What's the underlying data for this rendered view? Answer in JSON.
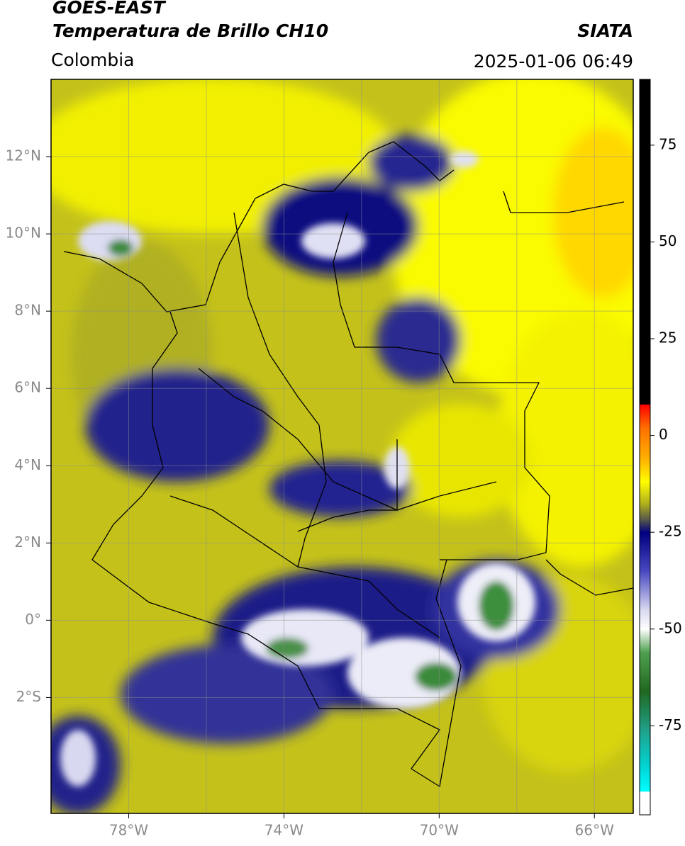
{
  "header": {
    "title": "GOES-EAST",
    "subtitle": "Temperatura de Brillo CH10",
    "region": "Colombia",
    "source": "SIATA",
    "datetime": "2025-01-06 06:49"
  },
  "map": {
    "xlim": [
      -80,
      -65
    ],
    "ylim": [
      -5,
      14
    ],
    "lon_ticks": [
      {
        "value": -78,
        "label": "78°W"
      },
      {
        "value": -74,
        "label": "74°W"
      },
      {
        "value": -70,
        "label": "70°W"
      },
      {
        "value": -66,
        "label": "66°W"
      }
    ],
    "lat_ticks": [
      {
        "value": 12,
        "label": "12°N"
      },
      {
        "value": 10,
        "label": "10°N"
      },
      {
        "value": 8,
        "label": "8°N"
      },
      {
        "value": 6,
        "label": "6°N"
      },
      {
        "value": 4,
        "label": "4°N"
      },
      {
        "value": 2,
        "label": "2°N"
      },
      {
        "value": 0,
        "label": "0°"
      },
      {
        "value": -2,
        "label": "2°S"
      }
    ],
    "lon_grid": [
      -78,
      -76,
      -74,
      -72,
      -70,
      -68,
      -66
    ]
  },
  "colorbar": {
    "lim": [
      -98,
      92
    ],
    "ticks": [
      75,
      50,
      25,
      0,
      -25,
      -50,
      -75
    ],
    "stops": [
      {
        "value": 92,
        "color": "#000000"
      },
      {
        "value": 8,
        "color": "#000000"
      },
      {
        "value": 8,
        "color": "#ff0000"
      },
      {
        "value": 2,
        "color": "#ff7000"
      },
      {
        "value": -6,
        "color": "#ffb000"
      },
      {
        "value": -12,
        "color": "#ffff00"
      },
      {
        "value": -18,
        "color": "#a8a820"
      },
      {
        "value": -22,
        "color": "#505050"
      },
      {
        "value": -25,
        "color": "#000080"
      },
      {
        "value": -35,
        "color": "#4848c0"
      },
      {
        "value": -45,
        "color": "#d8d8f0"
      },
      {
        "value": -50,
        "color": "#ffffff"
      },
      {
        "value": -56,
        "color": "#50a050"
      },
      {
        "value": -66,
        "color": "#206820"
      },
      {
        "value": -76,
        "color": "#20a088"
      },
      {
        "value": -86,
        "color": "#00d8d8"
      },
      {
        "value": -92,
        "color": "#00ffff"
      },
      {
        "value": -92,
        "color": "#ffffff"
      },
      {
        "value": -98,
        "color": "#ffffff"
      }
    ]
  }
}
